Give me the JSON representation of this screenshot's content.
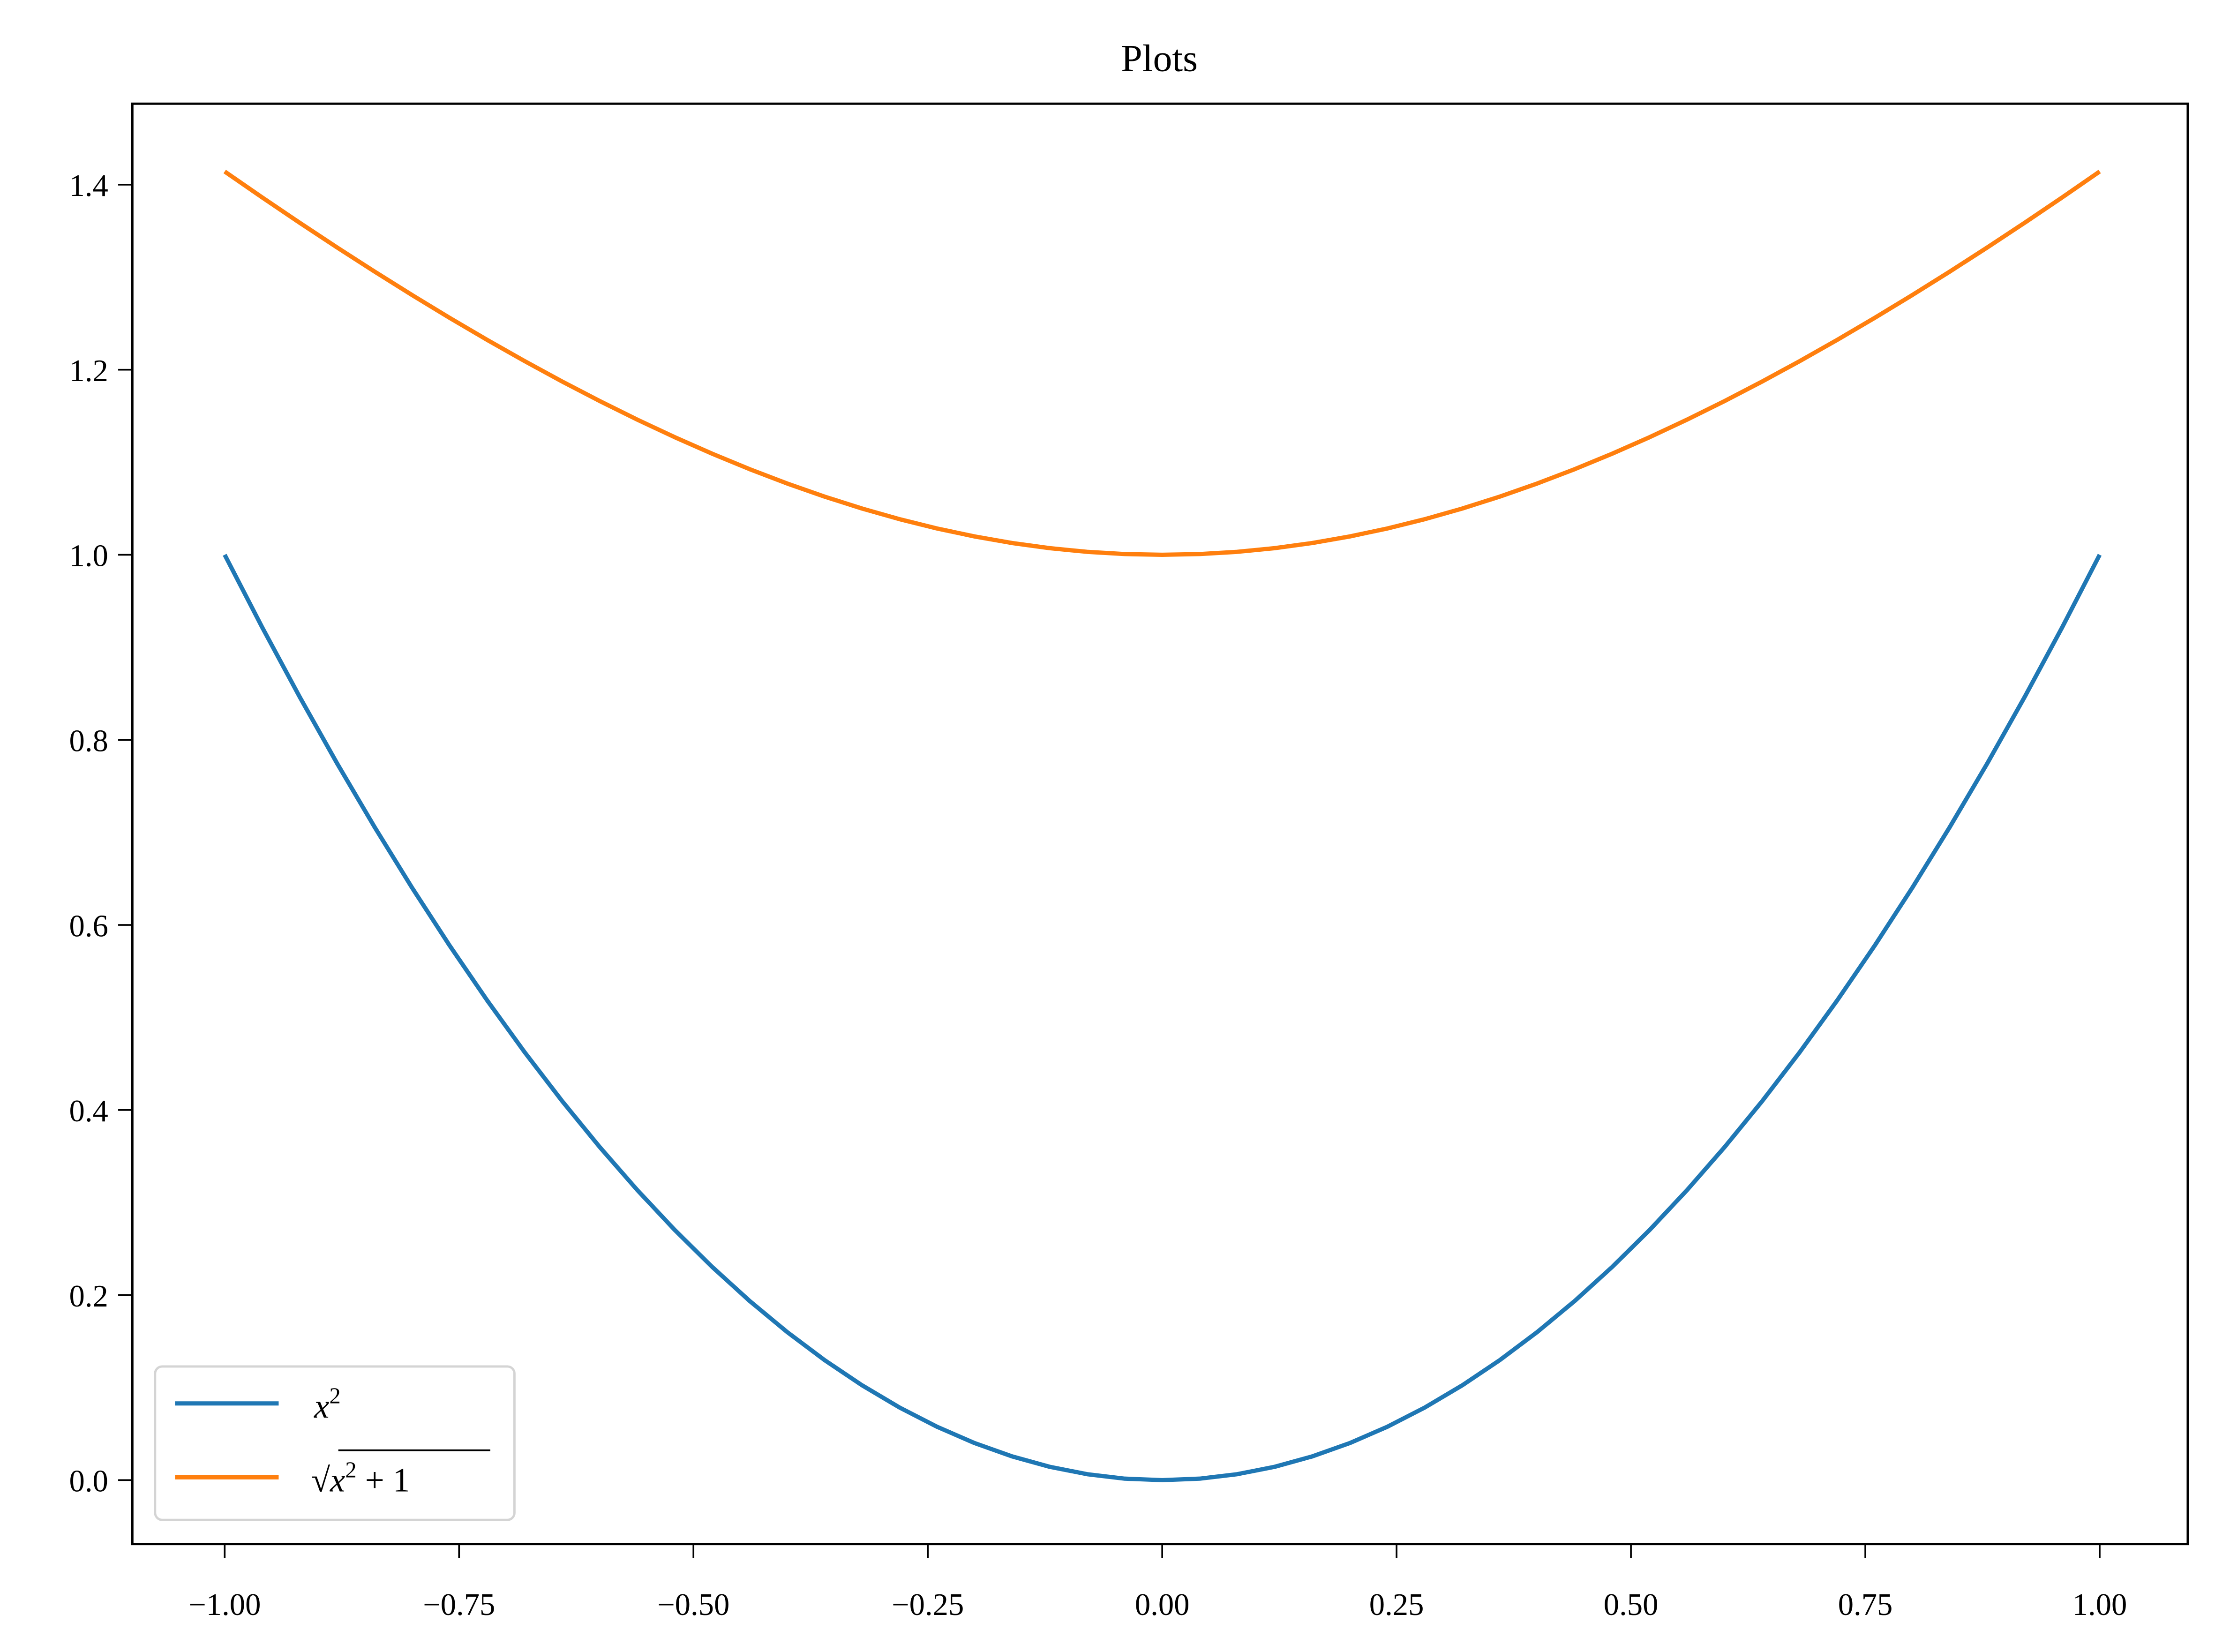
{
  "chart_data": {
    "type": "line",
    "title": "Plots",
    "xlabel": "",
    "ylabel": "",
    "xlim": [
      -1.1,
      1.1
    ],
    "ylim": [
      -0.07,
      1.485
    ],
    "grid": false,
    "legend_position": "lower left",
    "x_ticks": [
      "−1.00",
      "−0.75",
      "−0.50",
      "−0.25",
      "0.00",
      "0.25",
      "0.50",
      "0.75",
      "1.00"
    ],
    "x_tick_values": [
      -1.0,
      -0.75,
      -0.5,
      -0.25,
      0.0,
      0.25,
      0.5,
      0.75,
      1.0
    ],
    "y_ticks": [
      "0.0",
      "0.2",
      "0.4",
      "0.6",
      "0.8",
      "1.0",
      "1.2",
      "1.4"
    ],
    "y_tick_values": [
      0.0,
      0.2,
      0.4,
      0.6,
      0.8,
      1.0,
      1.2,
      1.4
    ],
    "x": [
      -1.0,
      -0.9,
      -0.8,
      -0.7,
      -0.6,
      -0.5,
      -0.4,
      -0.3,
      -0.2,
      -0.1,
      0.0,
      0.1,
      0.2,
      0.3,
      0.4,
      0.5,
      0.6,
      0.7,
      0.8,
      0.9,
      1.0
    ],
    "series": [
      {
        "name": "x^2",
        "label_display": "x²",
        "color": "#1f77b4",
        "values": [
          1.0,
          0.81,
          0.64,
          0.49,
          0.36,
          0.25,
          0.16,
          0.09,
          0.04,
          0.01,
          0.0,
          0.01,
          0.04,
          0.09,
          0.16,
          0.25,
          0.36,
          0.49,
          0.64,
          0.81,
          1.0
        ]
      },
      {
        "name": "sqrt(x^2 + 1)",
        "label_display": "√x² + 1",
        "color": "#ff7f0e",
        "values": [
          1.414,
          1.345,
          1.281,
          1.221,
          1.166,
          1.118,
          1.077,
          1.044,
          1.02,
          1.005,
          1.0,
          1.005,
          1.02,
          1.044,
          1.077,
          1.118,
          1.166,
          1.221,
          1.281,
          1.345,
          1.414
        ]
      }
    ]
  },
  "legend": {
    "items": [
      {
        "label_base": "x",
        "label_sup": "2",
        "color": "#1f77b4"
      },
      {
        "label_root": "√",
        "label_base": "x",
        "label_sup": "2",
        "label_tail": " + 1",
        "color": "#ff7f0e"
      }
    ]
  }
}
